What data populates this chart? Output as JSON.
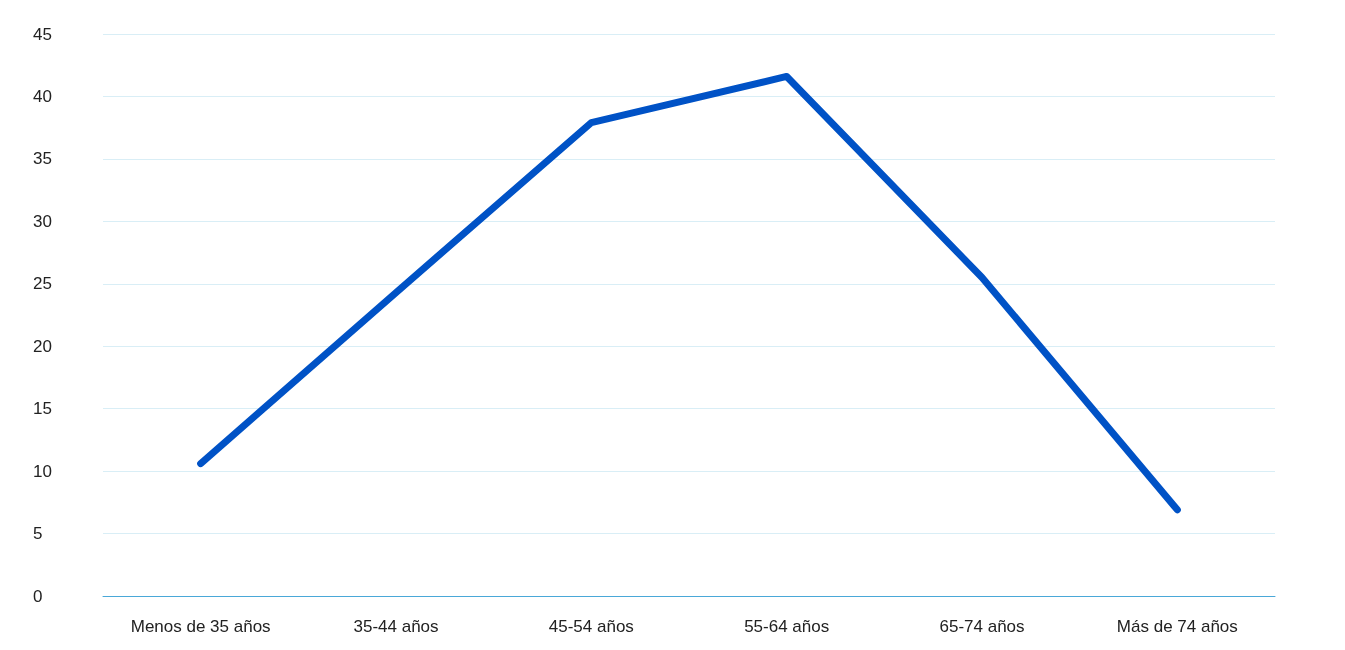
{
  "chart_data": {
    "type": "line",
    "categories": [
      "Menos de 35 años",
      "35-44 años",
      "45-54 años",
      "55-64 años",
      "65-74 años",
      "Más de 74 años"
    ],
    "series": [
      {
        "color": "#0052c6",
        "values": [
          10.6,
          24.3,
          37.9,
          41.6,
          25.5,
          6.9
        ]
      }
    ],
    "ylim": [
      0,
      45
    ],
    "yticks": [
      0,
      5,
      10,
      15,
      20,
      25,
      30,
      35,
      40,
      45
    ],
    "grid": "y",
    "marker": "none",
    "line_style": "solid"
  }
}
